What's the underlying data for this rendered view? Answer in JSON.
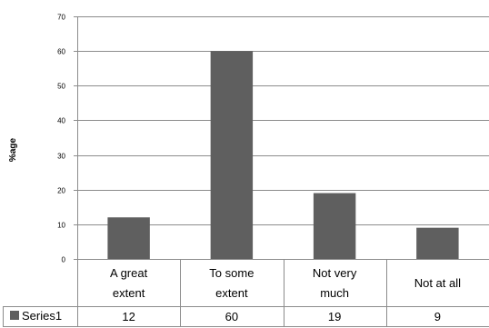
{
  "chart_data": {
    "type": "bar",
    "title": "",
    "xlabel": "",
    "ylabel": "%age",
    "ylim": [
      0,
      70
    ],
    "yticks": [
      0,
      10,
      20,
      30,
      40,
      50,
      60,
      70
    ],
    "grid": true,
    "categories": [
      [
        "A great",
        "extent"
      ],
      [
        "To some",
        "extent"
      ],
      [
        "Not very",
        "much"
      ],
      [
        "Not at all"
      ]
    ],
    "series": [
      {
        "name": "Series1",
        "color": "#5f5f5f",
        "values": [
          12,
          60,
          19,
          9
        ]
      }
    ],
    "data_table": true,
    "legend": "data-table-row"
  }
}
